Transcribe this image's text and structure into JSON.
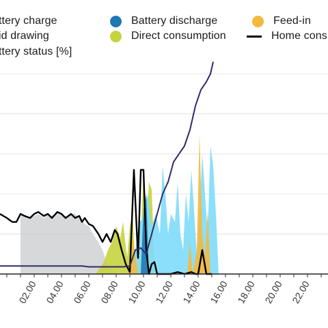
{
  "legend": {
    "battery_charge": "ttery charge",
    "grid_drawing": "id drawing",
    "battery_status": "ttery status [%]",
    "battery_discharge": "Battery discharge",
    "direct_consumption": "Direct consumption",
    "feed_in": "Feed-in",
    "home_consumption": "Home cons"
  },
  "colors": {
    "battery_charge": "#7fdcfa",
    "battery_discharge": "#1f78b4",
    "direct_consumption": "#c6d33f",
    "feed_in": "#f4b93e",
    "grid_drawing": "#c4c8c9",
    "home_consumption": "#000000",
    "battery_status": "#2e2a6e"
  },
  "chart_data": {
    "type": "area",
    "xlabel": "",
    "ylabel": "",
    "x_unit": "hour of day",
    "xlim": [
      -0.5,
      23.5
    ],
    "ylim": [
      0,
      5
    ],
    "grid": true,
    "tick_labels": [
      "02.00",
      "04.00",
      "06.00",
      "08.00",
      "10.00",
      "12.00",
      "14.00",
      "16.00",
      "18.00",
      "20.00",
      "22.00"
    ],
    "tick_values": [
      2,
      4,
      6,
      8,
      10,
      12,
      14,
      16,
      18,
      20,
      22
    ],
    "series": [
      {
        "key": "grid_drawing",
        "name": "Grid drawing",
        "kind": "area",
        "x": [
          1.0,
          1.3,
          1.7,
          2.0,
          2.3,
          2.7,
          3.0,
          3.3,
          3.7,
          4.0,
          4.3,
          4.7,
          5.0,
          5.3,
          5.7,
          6.0,
          6.3,
          6.7,
          7.0,
          7.3,
          7.6,
          7.9,
          8.2
        ],
        "y": [
          1.5,
          1.45,
          1.4,
          1.45,
          1.5,
          1.4,
          1.5,
          1.45,
          1.55,
          1.5,
          1.4,
          1.5,
          1.5,
          1.4,
          1.25,
          1.2,
          1.0,
          0.8,
          0.6,
          0.3,
          0.15,
          0.05,
          0.0
        ]
      },
      {
        "key": "direct_consumption",
        "name": "Direct consumption",
        "kind": "area",
        "x": [
          6.5,
          6.8,
          7.1,
          7.4,
          7.7,
          8.0,
          8.3,
          8.5,
          8.8,
          9.0,
          9.2,
          9.4,
          9.6,
          9.8,
          10.0,
          10.2,
          10.4,
          10.6,
          10.8,
          11.0,
          11.2,
          13.8,
          14.0,
          14.3,
          14.6
        ],
        "y": [
          0.0,
          0.15,
          0.3,
          0.6,
          0.8,
          1.2,
          0.9,
          1.3,
          0.4,
          1.2,
          1.5,
          0.2,
          0.3,
          0.8,
          2.6,
          1.0,
          2.3,
          2.1,
          0.3,
          0.0,
          0.0,
          0.0,
          0.2,
          0.6,
          0.0
        ]
      },
      {
        "key": "battery_charge",
        "name": "Battery charge",
        "kind": "area",
        "x": [
          9.0,
          9.4,
          9.7,
          10.0,
          10.3,
          10.6,
          10.9,
          11.2,
          11.4,
          11.6,
          11.8,
          12.0,
          12.3,
          12.5,
          12.7,
          12.9,
          13.1,
          13.3,
          13.5,
          13.7,
          13.9,
          14.1,
          14.3,
          14.5,
          14.7,
          14.9,
          15.1,
          15.3,
          15.5
        ],
        "y": [
          0.0,
          0.6,
          1.3,
          1.4,
          2.0,
          1.2,
          1.5,
          1.0,
          2.7,
          2.0,
          1.0,
          1.5,
          1.3,
          2.3,
          1.0,
          0.6,
          2.0,
          1.3,
          2.6,
          1.6,
          0.5,
          1.5,
          3.0,
          2.0,
          1.0,
          3.2,
          2.7,
          1.5,
          0.0
        ]
      },
      {
        "key": "feed_in",
        "name": "Feed-in",
        "kind": "area",
        "x": [
          8.8,
          9.0,
          9.2,
          9.4,
          9.6,
          13.2,
          13.4,
          13.6,
          13.9,
          14.1,
          14.3,
          14.5,
          14.7,
          14.9,
          15.1
        ],
        "y": [
          0.0,
          0.4,
          0.9,
          0.5,
          0.0,
          0.0,
          0.8,
          0.0,
          0.6,
          3.5,
          1.0,
          0.4,
          1.6,
          0.0,
          0.0
        ]
      },
      {
        "key": "battery_discharge",
        "name": "Battery discharge",
        "kind": "area",
        "x": [
          9.8,
          10.0,
          10.2,
          10.4
        ],
        "y": [
          0.0,
          1.6,
          2.0,
          0.0
        ]
      },
      {
        "key": "home_consumption",
        "name": "Home cons",
        "kind": "line",
        "x": [
          -0.5,
          0.0,
          0.4,
          0.7,
          1.0,
          1.3,
          1.7,
          2.0,
          2.3,
          2.7,
          3.0,
          3.3,
          3.7,
          4.0,
          4.3,
          4.7,
          5.0,
          5.3,
          5.5,
          5.7,
          6.0,
          6.3,
          6.7,
          7.0,
          7.3,
          7.6,
          7.9,
          8.1,
          8.4,
          8.7,
          9.0,
          9.3,
          9.6,
          9.8,
          10.0,
          10.2,
          10.4,
          10.6,
          10.8,
          11.0,
          11.2,
          11.6,
          12.0,
          12.5,
          13.0,
          13.5,
          13.8,
          14.0,
          14.3,
          14.6,
          15.0
        ],
        "y": [
          1.5,
          1.4,
          1.3,
          1.3,
          1.5,
          1.45,
          1.4,
          1.5,
          1.55,
          1.45,
          1.5,
          1.4,
          1.55,
          1.5,
          1.4,
          1.5,
          1.4,
          1.45,
          1.3,
          1.4,
          1.25,
          1.2,
          1.0,
          0.8,
          1.0,
          0.8,
          1.1,
          1.0,
          0.6,
          0.25,
          0.05,
          2.6,
          0.4,
          2.6,
          2.6,
          0.6,
          0.0,
          0.25,
          0.3,
          0.0,
          0.0,
          0.0,
          0.0,
          0.05,
          0.0,
          0.05,
          0.0,
          0.0,
          0.6,
          0.0,
          0.0
        ]
      },
      {
        "key": "battery_status",
        "name": "Battery status [%]",
        "kind": "line",
        "x": [
          -0.5,
          0.0,
          2.0,
          4.0,
          5.5,
          6.0,
          7.0,
          8.5,
          9.0,
          9.4,
          9.8,
          10.2,
          10.6,
          11.0,
          11.4,
          11.8,
          12.2,
          12.6,
          13.0,
          13.4,
          13.8,
          14.2,
          14.6,
          14.9,
          15.1
        ],
        "y": [
          0.2,
          0.2,
          0.2,
          0.2,
          0.2,
          0.18,
          0.18,
          0.18,
          0.2,
          0.6,
          0.65,
          0.5,
          1.0,
          1.5,
          2.0,
          2.3,
          2.8,
          3.0,
          3.2,
          3.6,
          4.2,
          4.6,
          4.8,
          5.0,
          5.3
        ]
      }
    ]
  }
}
